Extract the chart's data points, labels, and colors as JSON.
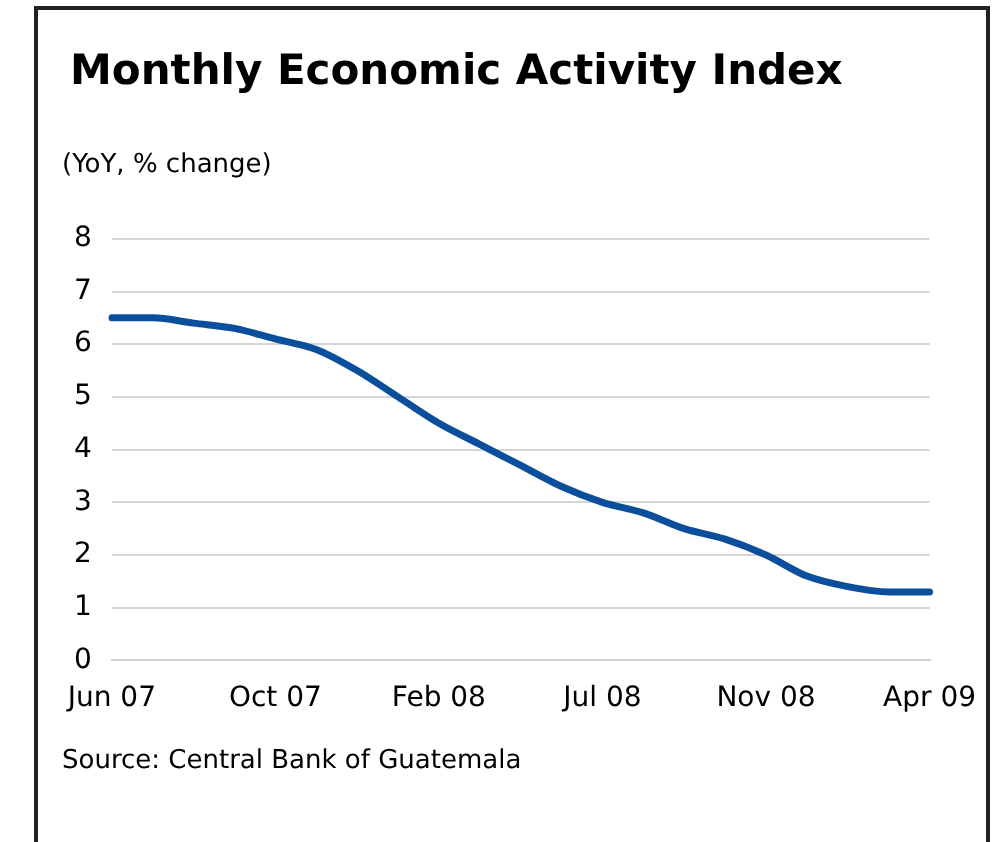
{
  "chart_data": {
    "type": "line",
    "title": "Monthly Economic Activity Index",
    "subtitle": "(YoY, % change)",
    "categories": [
      "Jun 07",
      null,
      null,
      null,
      "Oct 07",
      null,
      null,
      null,
      "Feb 08",
      null,
      null,
      null,
      "Jul 08",
      null,
      null,
      null,
      "Nov 08",
      null,
      null,
      null,
      "Apr 09"
    ],
    "series": [
      {
        "color": "#0b4f9c",
        "values": [
          6.5,
          6.5,
          6.4,
          6.3,
          6.1,
          5.9,
          5.5,
          5.0,
          4.5,
          4.1,
          3.7,
          3.3,
          3.0,
          2.8,
          2.5,
          2.3,
          2.0,
          1.6,
          1.4,
          1.3,
          1.3
        ]
      }
    ],
    "ylim": [
      0,
      8
    ],
    "yticks": [
      0,
      1,
      2,
      3,
      4,
      5,
      6,
      7,
      8
    ],
    "grid": "y",
    "legend": false,
    "marker": "none",
    "line_style": "solid",
    "annotations": [
      "Source: Central Bank of Guatemala"
    ]
  }
}
